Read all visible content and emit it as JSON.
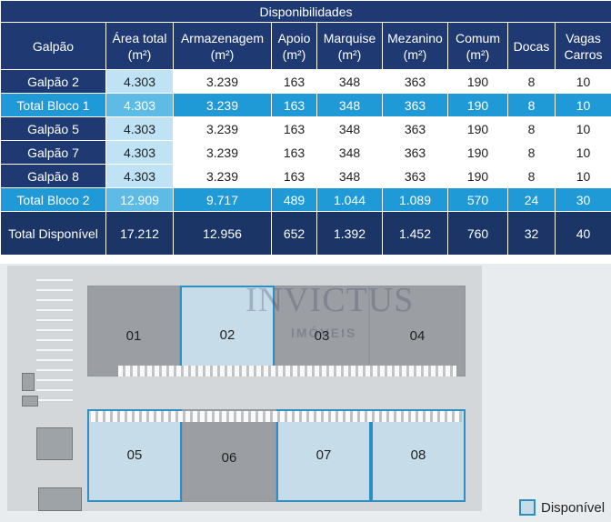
{
  "table": {
    "title": "Disponibilidades",
    "headers": [
      {
        "line1": "Galpão",
        "line2": ""
      },
      {
        "line1": "Área total",
        "line2": "(m²)"
      },
      {
        "line1": "Armazenagem",
        "line2": "(m²)"
      },
      {
        "line1": "Apoio",
        "line2": "(m²)"
      },
      {
        "line1": "Marquise",
        "line2": "(m²)"
      },
      {
        "line1": "Mezanino",
        "line2": "(m²)"
      },
      {
        "line1": "Comum",
        "line2": "(m²)"
      },
      {
        "line1": "Docas",
        "line2": ""
      },
      {
        "line1": "Vagas",
        "line2": "Carros"
      }
    ],
    "rows": [
      [
        "Galpão 2",
        "4.303",
        "3.239",
        "163",
        "348",
        "363",
        "190",
        "8",
        "10"
      ],
      [
        "Total Bloco 1",
        "4.303",
        "3.239",
        "163",
        "348",
        "363",
        "190",
        "8",
        "10"
      ],
      [
        "Galpão 5",
        "4.303",
        "3.239",
        "163",
        "348",
        "363",
        "190",
        "8",
        "10"
      ],
      [
        "Galpão 7",
        "4.303",
        "3.239",
        "163",
        "348",
        "363",
        "190",
        "8",
        "10"
      ],
      [
        "Galpão 8",
        "4.303",
        "3.239",
        "163",
        "348",
        "363",
        "190",
        "8",
        "10"
      ],
      [
        "Total Bloco 2",
        "12.909",
        "9.717",
        "489",
        "1.044",
        "1.089",
        "570",
        "24",
        "30"
      ],
      [
        "Total Disponível",
        "17.212",
        "12.956",
        "652",
        "1.392",
        "1.452",
        "760",
        "32",
        "40"
      ]
    ]
  },
  "plan": {
    "units": [
      "01",
      "02",
      "03",
      "04",
      "05",
      "06",
      "07",
      "08"
    ],
    "available_units": [
      "02",
      "05",
      "07",
      "08"
    ]
  },
  "watermark": {
    "brand": "INVICTUS",
    "sub": "IMÓVEIS"
  },
  "legend": {
    "label": "Disponível"
  },
  "colors": {
    "header": "#1f3a73",
    "bloco": "#1f9ad6",
    "total": "#1a3566",
    "available": "#c6dde9"
  }
}
